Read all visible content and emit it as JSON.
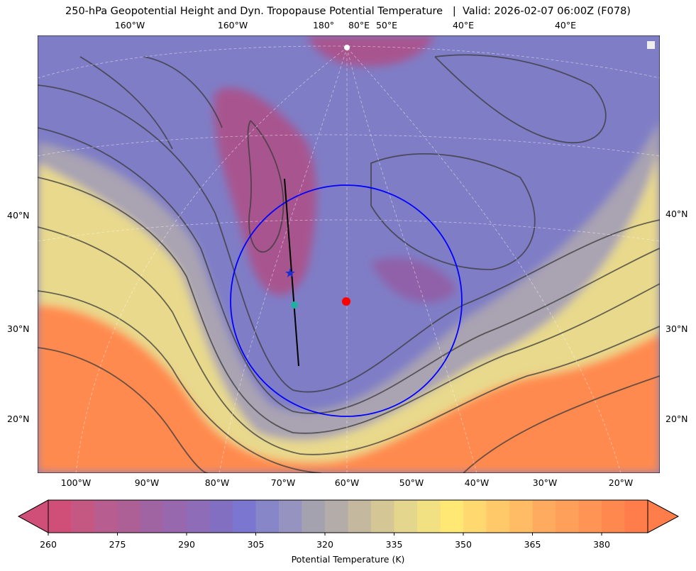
{
  "title": "250-hPa Geopotential Height and Dyn. Tropopause Potential Temperature   |  Valid: 2026-02-07 06:00Z (F078)",
  "top_lon_labels": [
    "160°W",
    "160°W",
    "180°",
    "80°E",
    "50°E",
    "40°E",
    "40°E"
  ],
  "bottom_lon_labels": [
    "100°W",
    "90°W",
    "80°W",
    "70°W",
    "60°W",
    "50°W",
    "40°W",
    "30°W",
    "20°W"
  ],
  "left_lat_labels": [
    "40°N",
    "30°N",
    "20°N"
  ],
  "right_lat_labels": [
    "40°N",
    "30°N",
    "20°N"
  ],
  "markers": {
    "circle_color": "#0000ff",
    "center_dot_color": "#ff0000",
    "star_color": "#1a2fd0",
    "teal_dot_color": "#20b0a0",
    "cross_section_line_color": "#000000"
  },
  "colorbar": {
    "label": "Potential Temperature (K)",
    "min": 260,
    "max": 390,
    "step": 5,
    "extend": "both",
    "ticks": [
      "260",
      "275",
      "290",
      "305",
      "320",
      "335",
      "350",
      "365",
      "380"
    ],
    "colors": [
      "#cf4f78",
      "#c45882",
      "#b85d8f",
      "#ac6096",
      "#a064a3",
      "#9868ae",
      "#8e6cb8",
      "#836fc2",
      "#7b76d0",
      "#8686c8",
      "#9693c0",
      "#a5a2b0",
      "#b4aca8",
      "#c4b89f",
      "#d4c795",
      "#e4d68c",
      "#f2e183",
      "#ffe873",
      "#ffd870",
      "#ffc96a",
      "#ffbc65",
      "#ffab5f",
      "#ffa05a",
      "#ff9454",
      "#ff884f",
      "#ff7d4a"
    ]
  }
}
